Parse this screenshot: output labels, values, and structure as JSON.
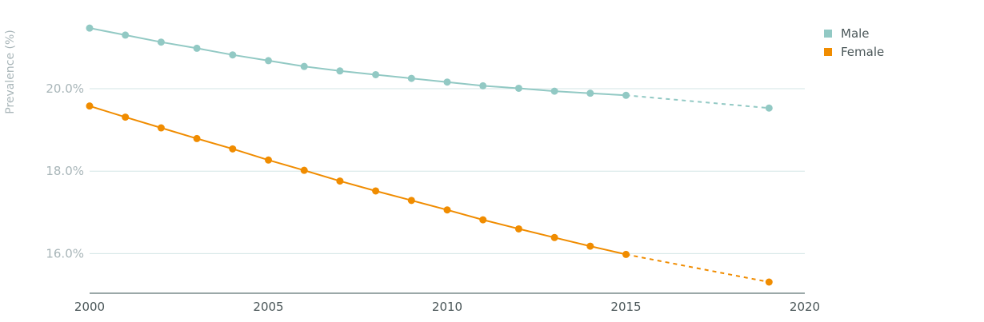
{
  "chart_data": {
    "type": "line",
    "ylabel": "Prevalence (%)",
    "xlim": [
      2000,
      2020
    ],
    "ylim": [
      15.0,
      21.9
    ],
    "y_ticks": [
      16,
      18,
      20
    ],
    "y_tick_labels": [
      "16.0%",
      "18.0%",
      "20.0%"
    ],
    "x_ticks": [
      2000,
      2005,
      2010,
      2015,
      2020
    ],
    "x_tick_labels": [
      "2000",
      "2005",
      "2010",
      "2015",
      "2020"
    ],
    "grid": true,
    "legend_position": "top-right",
    "series": [
      {
        "name": "Male",
        "color": "#92c9c4",
        "points": [
          {
            "x": 2000,
            "y": 21.47
          },
          {
            "x": 2001,
            "y": 21.3
          },
          {
            "x": 2002,
            "y": 21.13
          },
          {
            "x": 2003,
            "y": 20.98
          },
          {
            "x": 2004,
            "y": 20.82
          },
          {
            "x": 2005,
            "y": 20.68
          },
          {
            "x": 2006,
            "y": 20.54
          },
          {
            "x": 2007,
            "y": 20.43
          },
          {
            "x": 2008,
            "y": 20.34
          },
          {
            "x": 2009,
            "y": 20.25
          },
          {
            "x": 2010,
            "y": 20.16
          },
          {
            "x": 2011,
            "y": 20.07
          },
          {
            "x": 2012,
            "y": 20.01
          },
          {
            "x": 2013,
            "y": 19.94
          },
          {
            "x": 2014,
            "y": 19.89
          },
          {
            "x": 2015,
            "y": 19.84
          }
        ],
        "projected": [
          {
            "x": 2019,
            "y": 19.53
          }
        ]
      },
      {
        "name": "Female",
        "color": "#f08c00",
        "points": [
          {
            "x": 2000,
            "y": 19.58
          },
          {
            "x": 2001,
            "y": 19.31
          },
          {
            "x": 2002,
            "y": 19.05
          },
          {
            "x": 2003,
            "y": 18.79
          },
          {
            "x": 2004,
            "y": 18.54
          },
          {
            "x": 2005,
            "y": 18.27
          },
          {
            "x": 2006,
            "y": 18.02
          },
          {
            "x": 2007,
            "y": 17.76
          },
          {
            "x": 2008,
            "y": 17.52
          },
          {
            "x": 2009,
            "y": 17.29
          },
          {
            "x": 2010,
            "y": 17.06
          },
          {
            "x": 2011,
            "y": 16.82
          },
          {
            "x": 2012,
            "y": 16.6
          },
          {
            "x": 2013,
            "y": 16.39
          },
          {
            "x": 2014,
            "y": 16.18
          },
          {
            "x": 2015,
            "y": 15.98
          }
        ],
        "projected": [
          {
            "x": 2019,
            "y": 15.31
          }
        ]
      }
    ]
  }
}
